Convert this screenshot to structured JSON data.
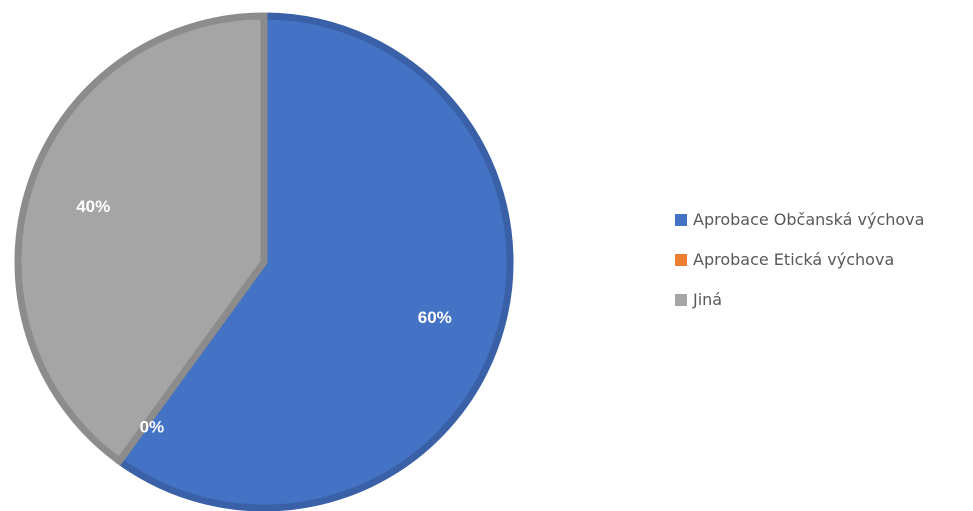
{
  "chart_data": {
    "type": "pie",
    "categories": [
      "Aprobace Občanská výchova",
      "Aprobace Etická výchova",
      "Jiná"
    ],
    "values": [
      60,
      0,
      40
    ],
    "data_labels": [
      "60%",
      "0%",
      "40%"
    ],
    "colors": [
      "#4472C4",
      "#ED7D31",
      "#A5A5A5"
    ],
    "start_angle_deg": 0,
    "legend_position": "right"
  }
}
